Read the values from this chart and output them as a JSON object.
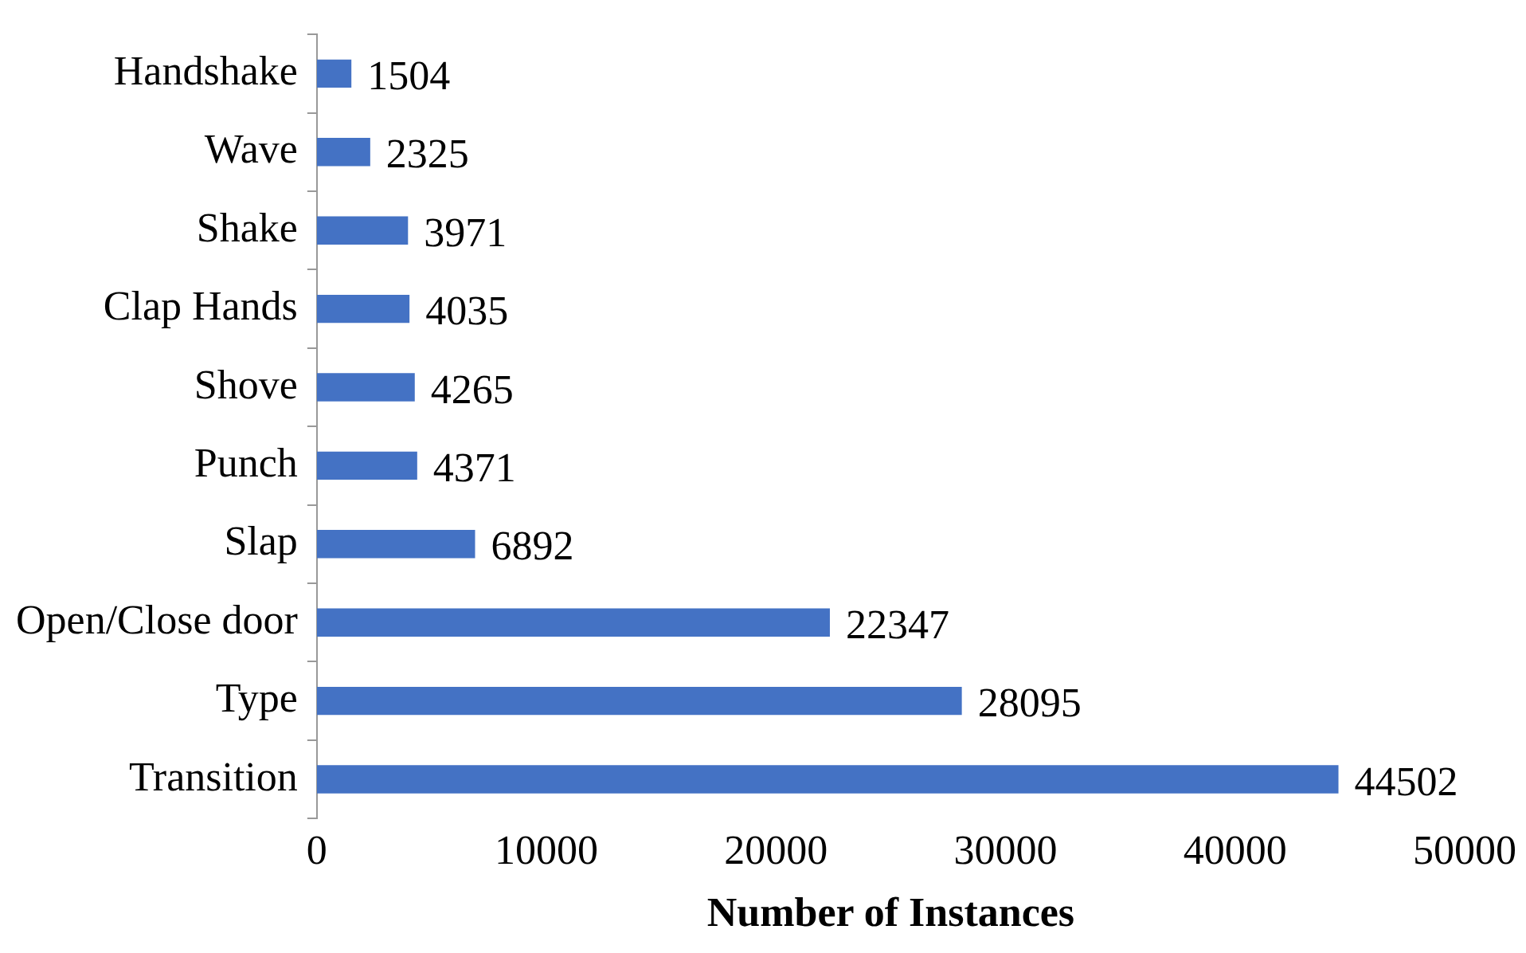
{
  "chart_data": {
    "type": "bar",
    "orientation": "horizontal",
    "xlabel": "Number of Instances",
    "categories": [
      "Handshake",
      "Wave",
      "Shake",
      "Clap Hands",
      "Shove",
      "Punch",
      "Slap",
      "Open/Close door",
      "Type",
      "Transition"
    ],
    "values": [
      1504,
      2325,
      3971,
      4035,
      4265,
      4371,
      6892,
      22347,
      28095,
      44502
    ],
    "color": "#4472c4",
    "xlim": [
      0,
      50000
    ],
    "xticks": [
      0,
      10000,
      20000,
      30000,
      40000,
      50000
    ],
    "grid": false,
    "legend": false,
    "data_labels": true
  }
}
